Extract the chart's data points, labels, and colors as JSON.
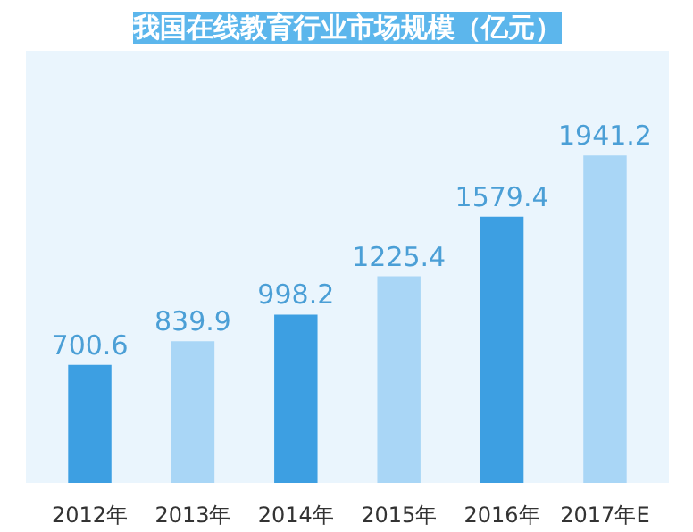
{
  "chart_data": {
    "type": "bar",
    "title": "我国在线教育行业市场规模（亿元）",
    "categories": [
      "2012年",
      "2013年",
      "2014年",
      "2015年",
      "2016年",
      "2017年E"
    ],
    "values": [
      700.6,
      839.9,
      998.2,
      1225.4,
      1579.4,
      1941.2
    ],
    "colors": [
      "#3d9fe2",
      "#a9d6f6",
      "#3d9fe2",
      "#a9d6f6",
      "#3d9fe2",
      "#a9d6f6"
    ],
    "data_labels": true
  }
}
